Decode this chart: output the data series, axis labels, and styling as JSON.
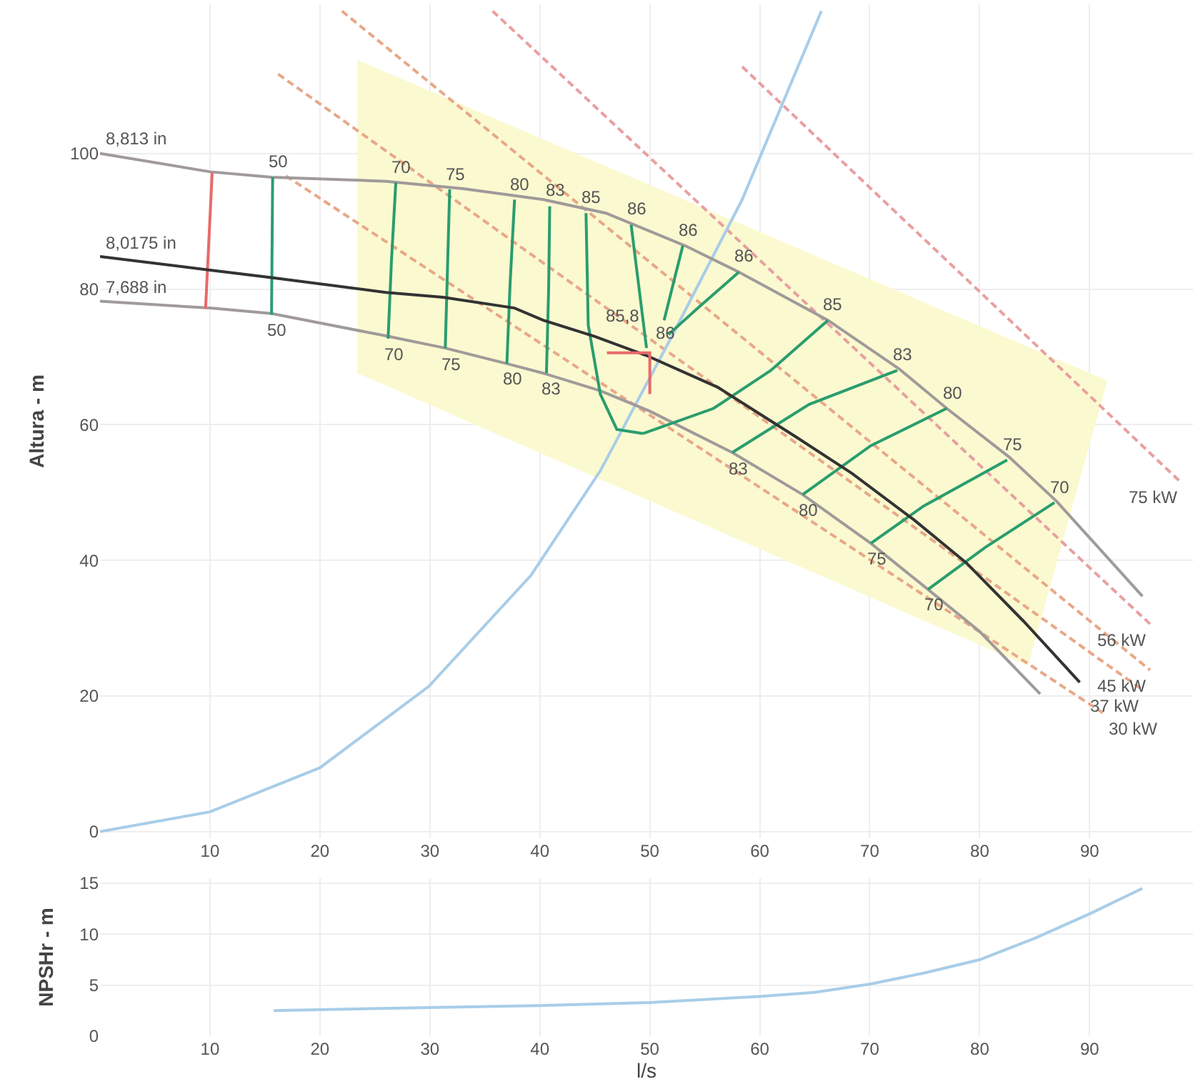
{
  "chart_data": [
    {
      "type": "line",
      "ylabel": "Altura - m",
      "xlim": [
        0,
        99.4
      ],
      "ylim": [
        -1,
        122
      ],
      "xticks": [
        10,
        20,
        30,
        40,
        50,
        60,
        70,
        80,
        90
      ],
      "yticks": [
        0,
        20,
        40,
        60,
        80,
        100
      ],
      "grid": true,
      "series": [
        {
          "type": "area",
          "color": "#fbf9d0",
          "x": [
            23.4,
            91.6,
            84.4,
            23.4
          ],
          "values": [
            113.8,
            66.5,
            24.4,
            67.6
          ]
        },
        {
          "type": "line",
          "color": "#e8a888",
          "line_style": "dashed",
          "x": [
            16.9,
            91.2
          ],
          "values": [
            96.7,
            17.5
          ]
        },
        {
          "type": "line",
          "color": "#e8a888",
          "line_style": "dashed",
          "x": [
            16.2,
            94.8
          ],
          "values": [
            111.7,
            20.9
          ]
        },
        {
          "type": "line",
          "color": "#e8a888",
          "line_style": "dashed",
          "x": [
            22,
            95.5
          ],
          "values": [
            121,
            23.8
          ]
        },
        {
          "type": "line",
          "color": "#e8a0a0",
          "line_style": "dashed",
          "x": [
            35.7,
            95.5
          ],
          "values": [
            121,
            30.6
          ]
        },
        {
          "type": "line",
          "color": "#e8a0a0",
          "line_style": "dashed",
          "x": [
            58.4,
            98.3
          ],
          "values": [
            112.8,
            51.5
          ]
        },
        {
          "type": "line",
          "color": "#a8cde8",
          "x": [
            0,
            10,
            20,
            29.9,
            39.2,
            45.5,
            51.9,
            58.4,
            65.6
          ],
          "values": [
            0,
            2.9,
            9.4,
            21.4,
            37.8,
            53.2,
            72.7,
            93.2,
            121
          ]
        },
        {
          "type": "line",
          "color": "#a09a9a",
          "x": [
            0,
            10,
            15.6,
            26,
            33,
            40.3,
            46,
            53.2,
            58.1,
            66.2,
            72.7,
            77,
            82.7,
            87,
            94.8
          ],
          "values": [
            100,
            97.3,
            96.5,
            95.9,
            94.8,
            93.2,
            91.2,
            86.4,
            82.5,
            75.4,
            68.2,
            62.4,
            55.2,
            48.7,
            34.7
          ]
        },
        {
          "type": "line",
          "color": "#a09a9a",
          "x": [
            0,
            10,
            15.6,
            26,
            31.4,
            37,
            40.3,
            45.5,
            50,
            57.5,
            63.9,
            70.1,
            75.3,
            80,
            85.5
          ],
          "values": [
            78.2,
            77.2,
            76.4,
            73.1,
            71.3,
            69,
            67.6,
            65,
            62,
            55.9,
            49.7,
            42.5,
            35.7,
            29.5,
            20.3
          ]
        },
        {
          "type": "line",
          "color": "#e86a6a",
          "x": [
            10.2,
            9.6
          ],
          "values": [
            97.2,
            77.1
          ]
        },
        {
          "type": "line",
          "color": "#2a9d6e",
          "x": [
            15.7,
            15.6
          ],
          "values": [
            96.5,
            76.2
          ]
        },
        {
          "type": "line",
          "color": "#2a9d6e",
          "x": [
            26.9,
            26.5,
            26.2
          ],
          "values": [
            95.7,
            84,
            72.7
          ]
        },
        {
          "type": "line",
          "color": "#2a9d6e",
          "x": [
            31.8,
            31.6,
            31.4
          ],
          "values": [
            94.7,
            83,
            71.3
          ]
        },
        {
          "type": "line",
          "color": "#2a9d6e",
          "x": [
            37.7,
            37.3,
            37
          ],
          "values": [
            93.2,
            81,
            69
          ]
        },
        {
          "type": "line",
          "color": "#2a9d6e",
          "x": [
            40.9,
            40.8,
            40.6
          ],
          "values": [
            92.2,
            80,
            67.6
          ]
        },
        {
          "type": "line",
          "color": "#2a9d6e",
          "x": [
            44.2,
            44.4,
            45.5,
            47,
            49.4
          ],
          "values": [
            91.2,
            74.7,
            64.5,
            59.3,
            58.7
          ]
        },
        {
          "type": "line",
          "color": "#2a9d6e",
          "x": [
            49.4,
            55.8,
            61,
            66.2
          ],
          "values": [
            58.7,
            62.4,
            68,
            75.4
          ]
        },
        {
          "type": "line",
          "color": "#2a9d6e",
          "x": [
            48.3,
            49.7
          ],
          "values": [
            89.5,
            71.3
          ]
        },
        {
          "type": "line",
          "color": "#2a9d6e",
          "x": [
            53,
            51.3
          ],
          "values": [
            86.4,
            75.4
          ]
        },
        {
          "type": "line",
          "color": "#2a9d6e",
          "x": [
            58.1,
            54.5,
            51.7
          ],
          "values": [
            82.5,
            77.4,
            73.3
          ]
        },
        {
          "type": "line",
          "color": "#2a9d6e",
          "x": [
            72.5,
            64.5,
            57.5
          ],
          "values": [
            68,
            63,
            55.9
          ]
        },
        {
          "type": "line",
          "color": "#2a9d6e",
          "x": [
            77,
            70.1,
            63.9
          ],
          "values": [
            62.4,
            56.9,
            49.7
          ]
        },
        {
          "type": "line",
          "color": "#2a9d6e",
          "x": [
            82.5,
            74.9,
            70.1
          ],
          "values": [
            54.8,
            48,
            42.5
          ]
        },
        {
          "type": "line",
          "color": "#2a9d6e",
          "x": [
            86.8,
            80.5,
            75.3
          ],
          "values": [
            48.5,
            41.9,
            35.7
          ]
        },
        {
          "type": "line",
          "color": "#333333",
          "x": [
            0,
            10,
            15.6,
            26,
            31.2,
            37.7,
            40.3,
            45,
            49.7,
            56.2,
            63.2,
            68.4,
            74,
            78.8,
            84,
            89.1
          ],
          "values": [
            84.8,
            82.8,
            81.7,
            79.5,
            78.8,
            77.2,
            75.4,
            73,
            70.2,
            65.5,
            58.3,
            52.8,
            46,
            39.6,
            31,
            22
          ]
        },
        {
          "type": "line",
          "color": "#e86a6a",
          "x": [
            46.1,
            50,
            50
          ],
          "values": [
            70.6,
            70.6,
            64.5
          ]
        }
      ],
      "annotations": [
        {
          "text": "8,813 in",
          "x": 0,
          "y": 100
        },
        {
          "text": "8,0175 in",
          "x": 0,
          "y": 84.8
        },
        {
          "text": "7,688 in",
          "x": 0,
          "y": 78.2
        },
        {
          "text": "50",
          "x": 15.7,
          "y": 96.5
        },
        {
          "text": "50",
          "x": 15.6,
          "y": 76.2
        },
        {
          "text": "70",
          "x": 26.9,
          "y": 95.7
        },
        {
          "text": "70",
          "x": 26.2,
          "y": 72.7
        },
        {
          "text": "75",
          "x": 31.8,
          "y": 94.7
        },
        {
          "text": "75",
          "x": 31.4,
          "y": 71.3
        },
        {
          "text": "80",
          "x": 37.7,
          "y": 93.2
        },
        {
          "text": "80",
          "x": 37,
          "y": 69
        },
        {
          "text": "83",
          "x": 40.9,
          "y": 92.2
        },
        {
          "text": "83",
          "x": 40.6,
          "y": 67.6
        },
        {
          "text": "85",
          "x": 44.2,
          "y": 91.2
        },
        {
          "text": "86",
          "x": 48.3,
          "y": 89.5
        },
        {
          "text": "86",
          "x": 53,
          "y": 86.4
        },
        {
          "text": "86",
          "x": 58.1,
          "y": 82.5
        },
        {
          "text": "85,8",
          "x": 47.6,
          "y": 76
        },
        {
          "text": "86",
          "x": 51.4,
          "y": 73.6
        },
        {
          "text": "85",
          "x": 66.2,
          "y": 75.4
        },
        {
          "text": "83",
          "x": 72.5,
          "y": 68
        },
        {
          "text": "83",
          "x": 57.5,
          "y": 55.9
        },
        {
          "text": "80",
          "x": 77,
          "y": 62.4
        },
        {
          "text": "80",
          "x": 63.9,
          "y": 49.7
        },
        {
          "text": "75",
          "x": 82.5,
          "y": 54.8
        },
        {
          "text": "75",
          "x": 70.1,
          "y": 42.5
        },
        {
          "text": "70",
          "x": 86.8,
          "y": 48.5
        },
        {
          "text": "70",
          "x": 75.3,
          "y": 35.7
        },
        {
          "text": "75 kW",
          "x": 98.3,
          "y": 51.5
        },
        {
          "text": "56 kW",
          "x": 95.5,
          "y": 30.6
        },
        {
          "text": "45 kW",
          "x": 95.5,
          "y": 23.8
        },
        {
          "text": "37 kW",
          "x": 94.8,
          "y": 20.9
        },
        {
          "text": "30 kW",
          "x": 91.2,
          "y": 17.5
        }
      ]
    },
    {
      "type": "line",
      "xlabel": "l/s",
      "ylabel": "NPSHr - m",
      "xlim": [
        0,
        99.4
      ],
      "ylim": [
        0,
        15.5
      ],
      "xticks": [
        10,
        20,
        30,
        40,
        50,
        60,
        70,
        80,
        90
      ],
      "yticks": [
        0,
        5,
        10,
        15
      ],
      "grid": true,
      "series": [
        {
          "type": "line",
          "color": "#a8cde8",
          "x": [
            15.8,
            20,
            30,
            40,
            50,
            60,
            65,
            70,
            75,
            80,
            85,
            90,
            94.8
          ],
          "values": [
            2.5,
            2.6,
            2.8,
            3.0,
            3.3,
            3.9,
            4.3,
            5.1,
            6.2,
            7.5,
            9.6,
            12.0,
            14.5
          ]
        }
      ]
    }
  ]
}
